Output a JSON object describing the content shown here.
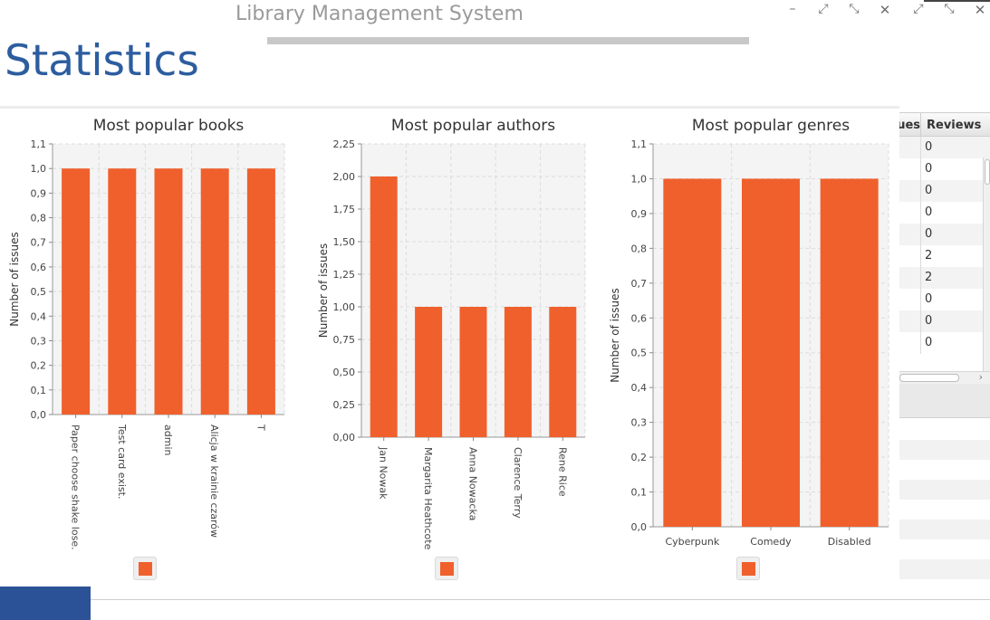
{
  "window": {
    "title": "Library Management System",
    "controls": [
      "–",
      "⤢",
      "⤡",
      "✕",
      "⤢",
      "⤡",
      "✕"
    ]
  },
  "page": {
    "title": "Statistics"
  },
  "colors": {
    "bar": "#f0602c",
    "plot_bg": "#f4f4f4",
    "grid": "#dcdcdc",
    "title_blue": "#2d5d9f"
  },
  "background_table": {
    "headers": [
      "Issues",
      "Reviews"
    ],
    "reviews": [
      "0",
      "0",
      "0",
      "0",
      "0",
      "2",
      "2",
      "0",
      "0",
      "0"
    ]
  },
  "chart_data": [
    {
      "type": "bar",
      "title": "Most popular books",
      "xlabel": "",
      "ylabel": "Number of issues",
      "categories": [
        "Paper choose shake lose.",
        "Test card exist.",
        "admin",
        "Alicja w krainie czarów",
        "T"
      ],
      "values": [
        1.0,
        1.0,
        1.0,
        1.0,
        1.0
      ],
      "ylim": [
        0,
        1.1
      ],
      "yticks": [
        "0,0",
        "0,1",
        "0,2",
        "0,3",
        "0,4",
        "0,5",
        "0,6",
        "0,7",
        "0,8",
        "0,9",
        "1,0",
        "1,1"
      ],
      "rotated_labels": true,
      "grid": true,
      "legend": "bottom-center"
    },
    {
      "type": "bar",
      "title": "Most popular authors",
      "xlabel": "",
      "ylabel": "Number of issues",
      "categories": [
        "Jan Nowak",
        "Margarita Heathcote",
        "Anna Nowacka",
        "Clarence Terry",
        "Rene Rice"
      ],
      "values": [
        2.0,
        1.0,
        1.0,
        1.0,
        1.0
      ],
      "ylim": [
        0,
        2.25
      ],
      "yticks": [
        "0,00",
        "0,25",
        "0,50",
        "0,75",
        "1,00",
        "1,25",
        "1,50",
        "1,75",
        "2,00",
        "2,25"
      ],
      "rotated_labels": true,
      "grid": true,
      "legend": "bottom-center"
    },
    {
      "type": "bar",
      "title": "Most popular genres",
      "xlabel": "",
      "ylabel": "Number of issues",
      "categories": [
        "Cyberpunk",
        "Comedy",
        "Disabled"
      ],
      "values": [
        1.0,
        1.0,
        1.0
      ],
      "ylim": [
        0,
        1.1
      ],
      "yticks": [
        "0,0",
        "0,1",
        "0,2",
        "0,3",
        "0,4",
        "0,5",
        "0,6",
        "0,7",
        "0,8",
        "0,9",
        "1,0",
        "1,1"
      ],
      "rotated_labels": false,
      "grid": true,
      "legend": "bottom-center"
    }
  ]
}
